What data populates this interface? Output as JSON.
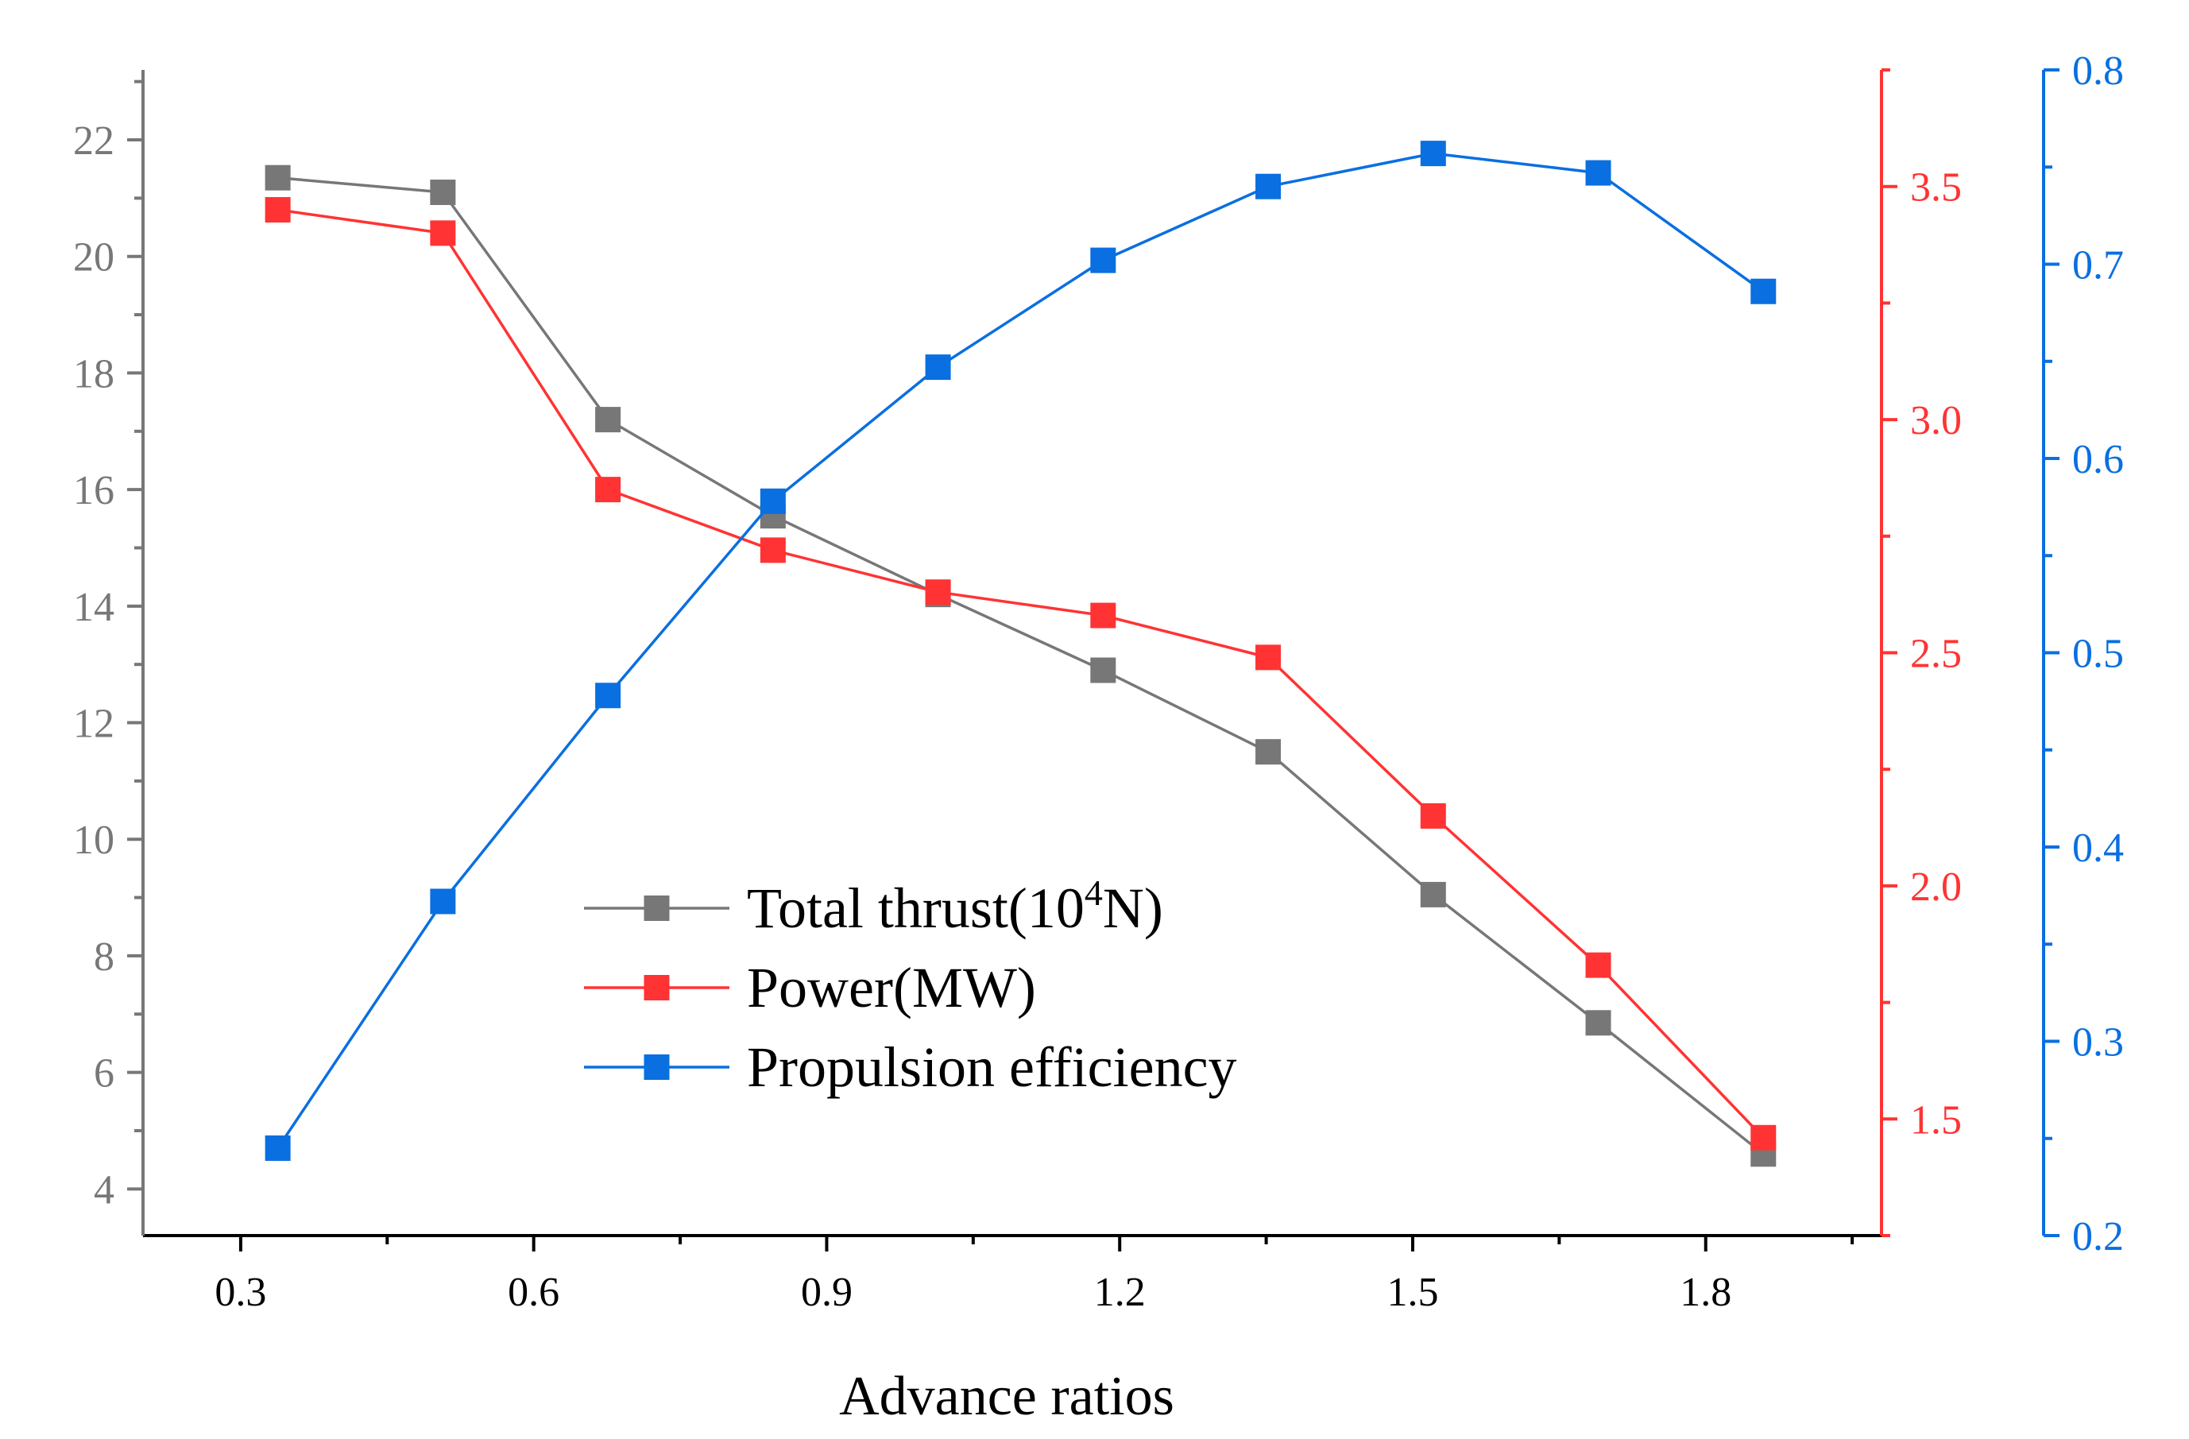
{
  "chart_data": {
    "type": "line",
    "xlabel": "Advance ratios",
    "xlim": [
      0.2,
      1.98
    ],
    "x_ticks": [
      "0.3",
      "0.6",
      "0.9",
      "1.2",
      "1.5",
      "1.8"
    ],
    "x": [
      0.338,
      0.507,
      0.676,
      0.845,
      1.014,
      1.183,
      1.352,
      1.521,
      1.69,
      1.859
    ],
    "axes": {
      "left": {
        "color": "#777777",
        "ylim": [
          3.2,
          23.2
        ],
        "ticks": [
          "4",
          "6",
          "8",
          "10",
          "12",
          "14",
          "16",
          "18",
          "20",
          "22"
        ]
      },
      "right1": {
        "color": "#ff3333",
        "ylim": [
          1.25,
          3.75
        ],
        "ticks": [
          "1.5",
          "2.0",
          "2.5",
          "3.0",
          "3.5"
        ]
      },
      "right2": {
        "color": "#0a6fe0",
        "ylim": [
          0.2,
          0.8
        ],
        "ticks": [
          "0.2",
          "0.3",
          "0.4",
          "0.5",
          "0.6",
          "0.7",
          "0.8"
        ]
      }
    },
    "series": [
      {
        "name": "Total thrust(10",
        "sup": "4",
        "suffix": "N)",
        "axis": "left",
        "color": "#777777",
        "values": [
          21.35,
          21.1,
          17.2,
          15.55,
          14.2,
          12.9,
          11.5,
          9.05,
          6.85,
          4.6
        ]
      },
      {
        "name": "Power(MW)",
        "sup": "",
        "suffix": "",
        "axis": "right1",
        "color": "#ff3333",
        "values": [
          3.45,
          3.4,
          2.85,
          2.72,
          2.63,
          2.58,
          2.49,
          2.15,
          1.83,
          1.46
        ]
      },
      {
        "name": "Propulsion efficiency",
        "sup": "",
        "suffix": "",
        "axis": "right2",
        "color": "#0a6fe0",
        "values": [
          0.245,
          0.372,
          0.478,
          0.578,
          0.647,
          0.702,
          0.74,
          0.757,
          0.747,
          0.686
        ]
      }
    ],
    "legend_position": "center-bottom"
  }
}
